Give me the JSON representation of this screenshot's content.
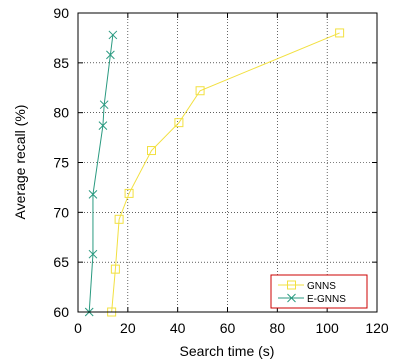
{
  "chart_data": {
    "type": "line",
    "title": "",
    "xlabel": "Search time (s)",
    "ylabel": "Average recall (%)",
    "xlim": [
      0,
      120
    ],
    "ylim": [
      60,
      90
    ],
    "xticks": [
      0,
      20,
      40,
      60,
      80,
      100,
      120
    ],
    "yticks": [
      60,
      65,
      70,
      75,
      80,
      85,
      90
    ],
    "grid": true,
    "legend": "bottom-right",
    "series": [
      {
        "name": "GNNS",
        "marker": "square",
        "color": "#f2e040",
        "points": [
          [
            13.5,
            60.0
          ],
          [
            15.0,
            64.3
          ],
          [
            16.5,
            69.3
          ],
          [
            20.5,
            71.9
          ],
          [
            29.5,
            76.2
          ],
          [
            40.5,
            79.0
          ],
          [
            49.0,
            82.2
          ],
          [
            105.0,
            88.0
          ]
        ]
      },
      {
        "name": "E-GNNS",
        "marker": "x",
        "color": "#2a9a80",
        "points": [
          [
            4.5,
            60.0
          ],
          [
            6.0,
            65.8
          ],
          [
            6.0,
            71.8
          ],
          [
            10.0,
            78.7
          ],
          [
            10.5,
            80.8
          ],
          [
            13.0,
            85.8
          ],
          [
            14.0,
            87.8
          ]
        ]
      }
    ]
  }
}
